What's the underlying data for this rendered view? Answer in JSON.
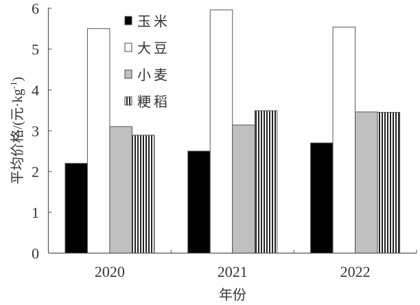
{
  "chart_data": {
    "type": "bar",
    "title": "",
    "xlabel": "年份",
    "ylabel": "平均价格/(元·kg⁻¹)",
    "ylabel_parts": {
      "main": "平均价格/(元·kg",
      "sup": "-1",
      "close": ")"
    },
    "categories": [
      "2020",
      "2021",
      "2022"
    ],
    "ylim": [
      0,
      6
    ],
    "yticks": [
      "0",
      "1",
      "2",
      "3",
      "4",
      "5",
      "6"
    ],
    "grid": false,
    "legend_position": "top-left",
    "series": [
      {
        "name": "玉米",
        "values": [
          2.2,
          2.5,
          2.7
        ],
        "fill": "#000000",
        "pattern": "solid"
      },
      {
        "name": "大豆",
        "values": [
          5.5,
          5.96,
          5.54
        ],
        "fill": "#ffffff",
        "pattern": "solid"
      },
      {
        "name": "小麦",
        "values": [
          3.1,
          3.14,
          3.46
        ],
        "fill": "#c0c0c0",
        "pattern": "solid"
      },
      {
        "name": "粳稻",
        "values": [
          2.89,
          3.49,
          3.45
        ],
        "fill": "#ffffff",
        "pattern": "vertical-stripes"
      }
    ]
  }
}
